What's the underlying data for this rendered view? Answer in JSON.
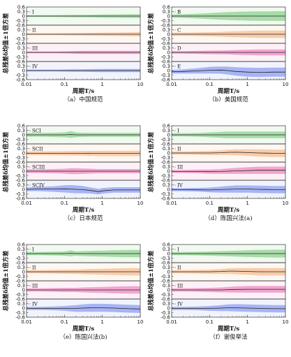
{
  "chart_data": [
    {
      "type": "area",
      "caption": "（a）中国规范",
      "xlabel": "周期T/s",
      "ylabel": "总残差δ均值±1倍方差",
      "xscale": "log",
      "xlim": [
        0.01,
        10
      ],
      "xticks": [
        "0.01",
        "0.1",
        "1",
        "10"
      ],
      "ylim": [
        -0.6,
        0.6
      ],
      "yticks": [
        "0.6",
        "0.3",
        "0",
        "-0.3",
        "-0.6"
      ],
      "x": [
        0.01,
        0.02,
        0.05,
        0.1,
        0.2,
        0.3,
        0.5,
        1,
        2,
        5,
        10
      ],
      "series": [
        {
          "name": "I",
          "color": "#8fd18f",
          "mean": [
            0.0,
            0.0,
            0.0,
            0.0,
            0.0,
            0.0,
            0.0,
            0.0,
            0.0,
            0.0,
            0.0
          ],
          "sigma": [
            0.06,
            0.06,
            0.06,
            0.07,
            0.08,
            0.08,
            0.09,
            0.1,
            0.11,
            0.12,
            0.12
          ]
        },
        {
          "name": "II",
          "color": "#f5be92",
          "mean": [
            0.0,
            0.0,
            0.0,
            0.0,
            0.0,
            0.0,
            0.0,
            0.0,
            0.0,
            0.0,
            0.0
          ],
          "sigma": [
            0.06,
            0.06,
            0.06,
            0.07,
            0.08,
            0.08,
            0.09,
            0.1,
            0.11,
            0.13,
            0.14
          ]
        },
        {
          "name": "III",
          "color": "#ee8bc0",
          "mean": [
            0.0,
            0.0,
            0.0,
            0.0,
            0.0,
            0.0,
            0.0,
            0.0,
            0.0,
            0.0,
            0.0
          ],
          "sigma": [
            0.06,
            0.06,
            0.06,
            0.07,
            0.09,
            0.1,
            0.1,
            0.1,
            0.1,
            0.1,
            0.1
          ]
        },
        {
          "name": "IV",
          "color": "#8d9ff0",
          "mean": [
            0.0,
            0.0,
            0.0,
            0.0,
            0.0,
            0.0,
            0.0,
            0.0,
            0.0,
            0.0,
            0.0
          ],
          "sigma": [
            0.06,
            0.06,
            0.06,
            0.07,
            0.08,
            0.08,
            0.09,
            0.1,
            0.1,
            0.1,
            0.1
          ]
        }
      ]
    },
    {
      "type": "area",
      "caption": "（b）美国规范",
      "xlabel": "周期T/s",
      "ylabel": "总残差δ均值±1倍方差",
      "xscale": "log",
      "xlim": [
        0.01,
        10
      ],
      "xticks": [
        "0.01",
        "0.1",
        "1",
        "10"
      ],
      "ylim": [
        -0.6,
        0.6
      ],
      "yticks": [
        "0.6",
        "0.3",
        "0",
        "-0.3",
        "-0.6"
      ],
      "x": [
        0.01,
        0.02,
        0.05,
        0.1,
        0.2,
        0.3,
        0.5,
        1,
        2,
        5,
        10
      ],
      "series": [
        {
          "name": "B",
          "color": "#8fd18f",
          "mean": [
            0.0,
            0.0,
            0.0,
            0.0,
            0.0,
            0.0,
            0.0,
            0.0,
            0.0,
            0.0,
            0.0
          ],
          "sigma": [
            0.1,
            0.12,
            0.16,
            0.2,
            0.24,
            0.26,
            0.28,
            0.3,
            0.31,
            0.32,
            0.32
          ]
        },
        {
          "name": "C",
          "color": "#f5be92",
          "mean": [
            0.0,
            0.0,
            0.0,
            0.0,
            0.0,
            0.0,
            0.0,
            0.0,
            0.0,
            0.0,
            0.0
          ],
          "sigma": [
            0.1,
            0.1,
            0.12,
            0.14,
            0.16,
            0.18,
            0.2,
            0.22,
            0.24,
            0.24,
            0.24
          ]
        },
        {
          "name": "D",
          "color": "#ee8bc0",
          "mean": [
            0.0,
            0.0,
            0.0,
            0.0,
            0.0,
            0.0,
            0.0,
            0.0,
            0.0,
            0.0,
            0.0
          ],
          "sigma": [
            0.08,
            0.08,
            0.1,
            0.12,
            0.13,
            0.14,
            0.16,
            0.18,
            0.2,
            0.2,
            0.2
          ]
        },
        {
          "name": "E",
          "color": "#8d9ff0",
          "mean": [
            -0.08,
            -0.06,
            -0.02,
            0.02,
            0.03,
            0.0,
            -0.06,
            -0.1,
            -0.12,
            -0.1,
            -0.1
          ],
          "sigma": [
            0.12,
            0.14,
            0.18,
            0.22,
            0.24,
            0.26,
            0.28,
            0.3,
            0.3,
            0.3,
            0.3
          ]
        }
      ]
    },
    {
      "type": "area",
      "caption": "（c）日本规范",
      "xlabel": "周期T/s",
      "ylabel": "总残差δ均值±1倍方差",
      "xscale": "log",
      "xlim": [
        0.01,
        10
      ],
      "xticks": [
        "0.01",
        "0.1",
        "1",
        "10"
      ],
      "ylim": [
        -0.6,
        0.6
      ],
      "yticks": [
        "0.6",
        "0.3",
        "0",
        "-0.3",
        "-0.6"
      ],
      "x": [
        0.01,
        0.02,
        0.05,
        0.1,
        0.15,
        0.2,
        0.3,
        0.5,
        0.8,
        1,
        2,
        5,
        10
      ],
      "series": [
        {
          "name": "SCI",
          "color": "#8fd18f",
          "mean": [
            0.0,
            0.0,
            0.0,
            0.0,
            0.02,
            0.0,
            0.0,
            0.0,
            0.0,
            0.0,
            0.0,
            0.0,
            0.0
          ],
          "sigma": [
            0.12,
            0.12,
            0.14,
            0.16,
            0.22,
            0.16,
            0.14,
            0.13,
            0.13,
            0.13,
            0.13,
            0.13,
            0.13
          ]
        },
        {
          "name": "SCII",
          "color": "#f5be92",
          "mean": [
            -0.02,
            -0.02,
            -0.02,
            -0.02,
            -0.02,
            -0.02,
            -0.02,
            -0.03,
            -0.03,
            -0.03,
            -0.03,
            -0.03,
            -0.03
          ],
          "sigma": [
            0.12,
            0.12,
            0.13,
            0.14,
            0.15,
            0.15,
            0.16,
            0.17,
            0.17,
            0.17,
            0.18,
            0.18,
            0.18
          ]
        },
        {
          "name": "SCIII",
          "color": "#ee8bc0",
          "mean": [
            0.0,
            0.0,
            0.0,
            0.0,
            0.0,
            0.0,
            0.0,
            0.0,
            0.0,
            0.0,
            0.0,
            0.0,
            0.0
          ],
          "sigma": [
            0.12,
            0.12,
            0.14,
            0.16,
            0.2,
            0.2,
            0.18,
            0.16,
            0.14,
            0.14,
            0.14,
            0.14,
            0.14
          ]
        },
        {
          "name": "SCIV",
          "color": "#8d9ff0",
          "mean": [
            0.0,
            0.02,
            0.02,
            0.03,
            0.02,
            0.0,
            -0.02,
            -0.08,
            -0.15,
            -0.1,
            -0.04,
            -0.04,
            -0.04
          ],
          "sigma": [
            0.12,
            0.14,
            0.18,
            0.24,
            0.26,
            0.26,
            0.24,
            0.2,
            0.18,
            0.18,
            0.18,
            0.18,
            0.18
          ]
        }
      ]
    },
    {
      "type": "area",
      "caption": "（d）陈国兴法(a)",
      "xlabel": "周期T/s",
      "ylabel": "总残差δ均值±1倍方差",
      "xscale": "log",
      "xlim": [
        0.01,
        10
      ],
      "xticks": [
        "0.01",
        "0.1",
        "1",
        "10"
      ],
      "ylim": [
        -0.6,
        0.6
      ],
      "yticks": [
        "0.6",
        "0.3",
        "0",
        "-0.3",
        "-0.6"
      ],
      "x": [
        0.01,
        0.02,
        0.05,
        0.1,
        0.2,
        0.3,
        0.5,
        1,
        2,
        5,
        10
      ],
      "series": [
        {
          "name": "I",
          "color": "#8fd18f",
          "mean": [
            0.0,
            0.0,
            0.0,
            0.0,
            0.0,
            0.0,
            0.0,
            0.0,
            0.0,
            0.0,
            0.0
          ],
          "sigma": [
            0.1,
            0.1,
            0.12,
            0.16,
            0.2,
            0.22,
            0.22,
            0.22,
            0.22,
            0.22,
            0.22
          ]
        },
        {
          "name": "II",
          "color": "#f5be92",
          "mean": [
            0.0,
            0.0,
            0.0,
            0.0,
            0.02,
            0.04,
            0.05,
            0.03,
            0.0,
            -0.02,
            -0.02
          ],
          "sigma": [
            0.1,
            0.1,
            0.12,
            0.14,
            0.16,
            0.18,
            0.2,
            0.22,
            0.24,
            0.24,
            0.24
          ]
        },
        {
          "name": "III",
          "color": "#ee8bc0",
          "mean": [
            -0.02,
            -0.02,
            -0.02,
            -0.03,
            -0.02,
            0.0,
            0.02,
            0.04,
            0.06,
            0.06,
            0.06
          ],
          "sigma": [
            0.1,
            0.1,
            0.12,
            0.14,
            0.16,
            0.18,
            0.2,
            0.22,
            0.24,
            0.24,
            0.24
          ]
        },
        {
          "name": "IV",
          "color": "#8d9ff0",
          "mean": [
            -0.02,
            -0.02,
            -0.03,
            -0.04,
            -0.02,
            0.0,
            0.02,
            0.02,
            0.0,
            -0.02,
            -0.02
          ],
          "sigma": [
            0.1,
            0.1,
            0.12,
            0.16,
            0.2,
            0.22,
            0.24,
            0.24,
            0.24,
            0.24,
            0.24
          ]
        }
      ]
    },
    {
      "type": "area",
      "caption": "（e）陈国兴法(b)",
      "xlabel": "周期T/s",
      "ylabel": "总残差δ均值±1倍方差",
      "xscale": "log",
      "xlim": [
        0.01,
        10
      ],
      "xticks": [
        "0.01",
        "0.1",
        "1",
        "10"
      ],
      "ylim": [
        -0.6,
        0.6
      ],
      "yticks": [
        "0.6",
        "0.3",
        "0",
        "-0.3",
        "-0.6"
      ],
      "x": [
        0.01,
        0.02,
        0.05,
        0.1,
        0.15,
        0.2,
        0.3,
        0.5,
        1,
        2,
        5,
        10
      ],
      "series": [
        {
          "name": "I",
          "color": "#8fd18f",
          "mean": [
            0.0,
            0.0,
            0.0,
            0.0,
            0.02,
            0.0,
            0.0,
            0.0,
            0.0,
            0.0,
            0.0,
            0.0
          ],
          "sigma": [
            0.1,
            0.1,
            0.12,
            0.14,
            0.2,
            0.14,
            0.16,
            0.18,
            0.2,
            0.22,
            0.24,
            0.24
          ]
        },
        {
          "name": "II",
          "color": "#f5be92",
          "mean": [
            0.0,
            0.0,
            0.0,
            0.0,
            0.0,
            0.0,
            0.0,
            0.0,
            0.0,
            0.0,
            0.0,
            0.0
          ],
          "sigma": [
            0.1,
            0.1,
            0.12,
            0.14,
            0.14,
            0.14,
            0.16,
            0.18,
            0.2,
            0.22,
            0.24,
            0.24
          ]
        },
        {
          "name": "III",
          "color": "#ee8bc0",
          "mean": [
            0.0,
            0.0,
            0.0,
            0.0,
            0.0,
            0.0,
            0.0,
            0.0,
            0.0,
            0.0,
            0.0,
            0.0
          ],
          "sigma": [
            0.1,
            0.1,
            0.12,
            0.14,
            0.14,
            0.14,
            0.16,
            0.18,
            0.2,
            0.22,
            0.24,
            0.24
          ]
        },
        {
          "name": "IV",
          "color": "#8d9ff0",
          "mean": [
            -0.02,
            -0.02,
            -0.02,
            -0.02,
            -0.02,
            -0.02,
            0.0,
            0.02,
            0.02,
            0.0,
            -0.04,
            -0.06
          ],
          "sigma": [
            0.1,
            0.1,
            0.12,
            0.16,
            0.2,
            0.22,
            0.24,
            0.26,
            0.26,
            0.26,
            0.26,
            0.26
          ]
        }
      ]
    },
    {
      "type": "area",
      "caption": "（f）谢俊举法",
      "xlabel": "周期T/s",
      "ylabel": "总残差δ均值±1倍方差",
      "xscale": "log",
      "xlim": [
        0.01,
        10
      ],
      "xticks": [
        "0.01",
        "0.1",
        "1",
        "10"
      ],
      "ylim": [
        -0.6,
        0.6
      ],
      "yticks": [
        "0.6",
        "0.3",
        "0",
        "-0.3",
        "-0.6"
      ],
      "x": [
        0.01,
        0.02,
        0.05,
        0.1,
        0.2,
        0.3,
        0.5,
        1,
        2,
        5,
        10
      ],
      "series": [
        {
          "name": "I",
          "color": "#8fd18f",
          "mean": [
            0.0,
            0.0,
            0.0,
            0.0,
            0.0,
            0.0,
            0.0,
            0.0,
            0.0,
            0.0,
            0.0
          ],
          "sigma": [
            0.1,
            0.1,
            0.12,
            0.14,
            0.16,
            0.18,
            0.2,
            0.22,
            0.24,
            0.26,
            0.26
          ]
        },
        {
          "name": "II",
          "color": "#f5be92",
          "mean": [
            0.0,
            0.0,
            0.0,
            0.0,
            0.02,
            0.04,
            0.04,
            0.02,
            0.0,
            0.0,
            0.0
          ],
          "sigma": [
            0.1,
            0.1,
            0.12,
            0.14,
            0.16,
            0.18,
            0.2,
            0.22,
            0.24,
            0.24,
            0.24
          ]
        },
        {
          "name": "III",
          "color": "#ee8bc0",
          "mean": [
            0.0,
            0.0,
            0.0,
            0.0,
            0.0,
            0.02,
            0.03,
            0.04,
            0.04,
            0.04,
            0.04
          ],
          "sigma": [
            0.1,
            0.1,
            0.12,
            0.14,
            0.16,
            0.18,
            0.2,
            0.22,
            0.22,
            0.22,
            0.22
          ]
        },
        {
          "name": "IV",
          "color": "#8d9ff0",
          "mean": [
            -0.02,
            -0.02,
            -0.02,
            -0.02,
            0.0,
            0.02,
            0.02,
            0.0,
            -0.02,
            -0.04,
            -0.04
          ],
          "sigma": [
            0.1,
            0.1,
            0.12,
            0.16,
            0.2,
            0.22,
            0.24,
            0.24,
            0.24,
            0.24,
            0.24
          ]
        }
      ]
    }
  ]
}
